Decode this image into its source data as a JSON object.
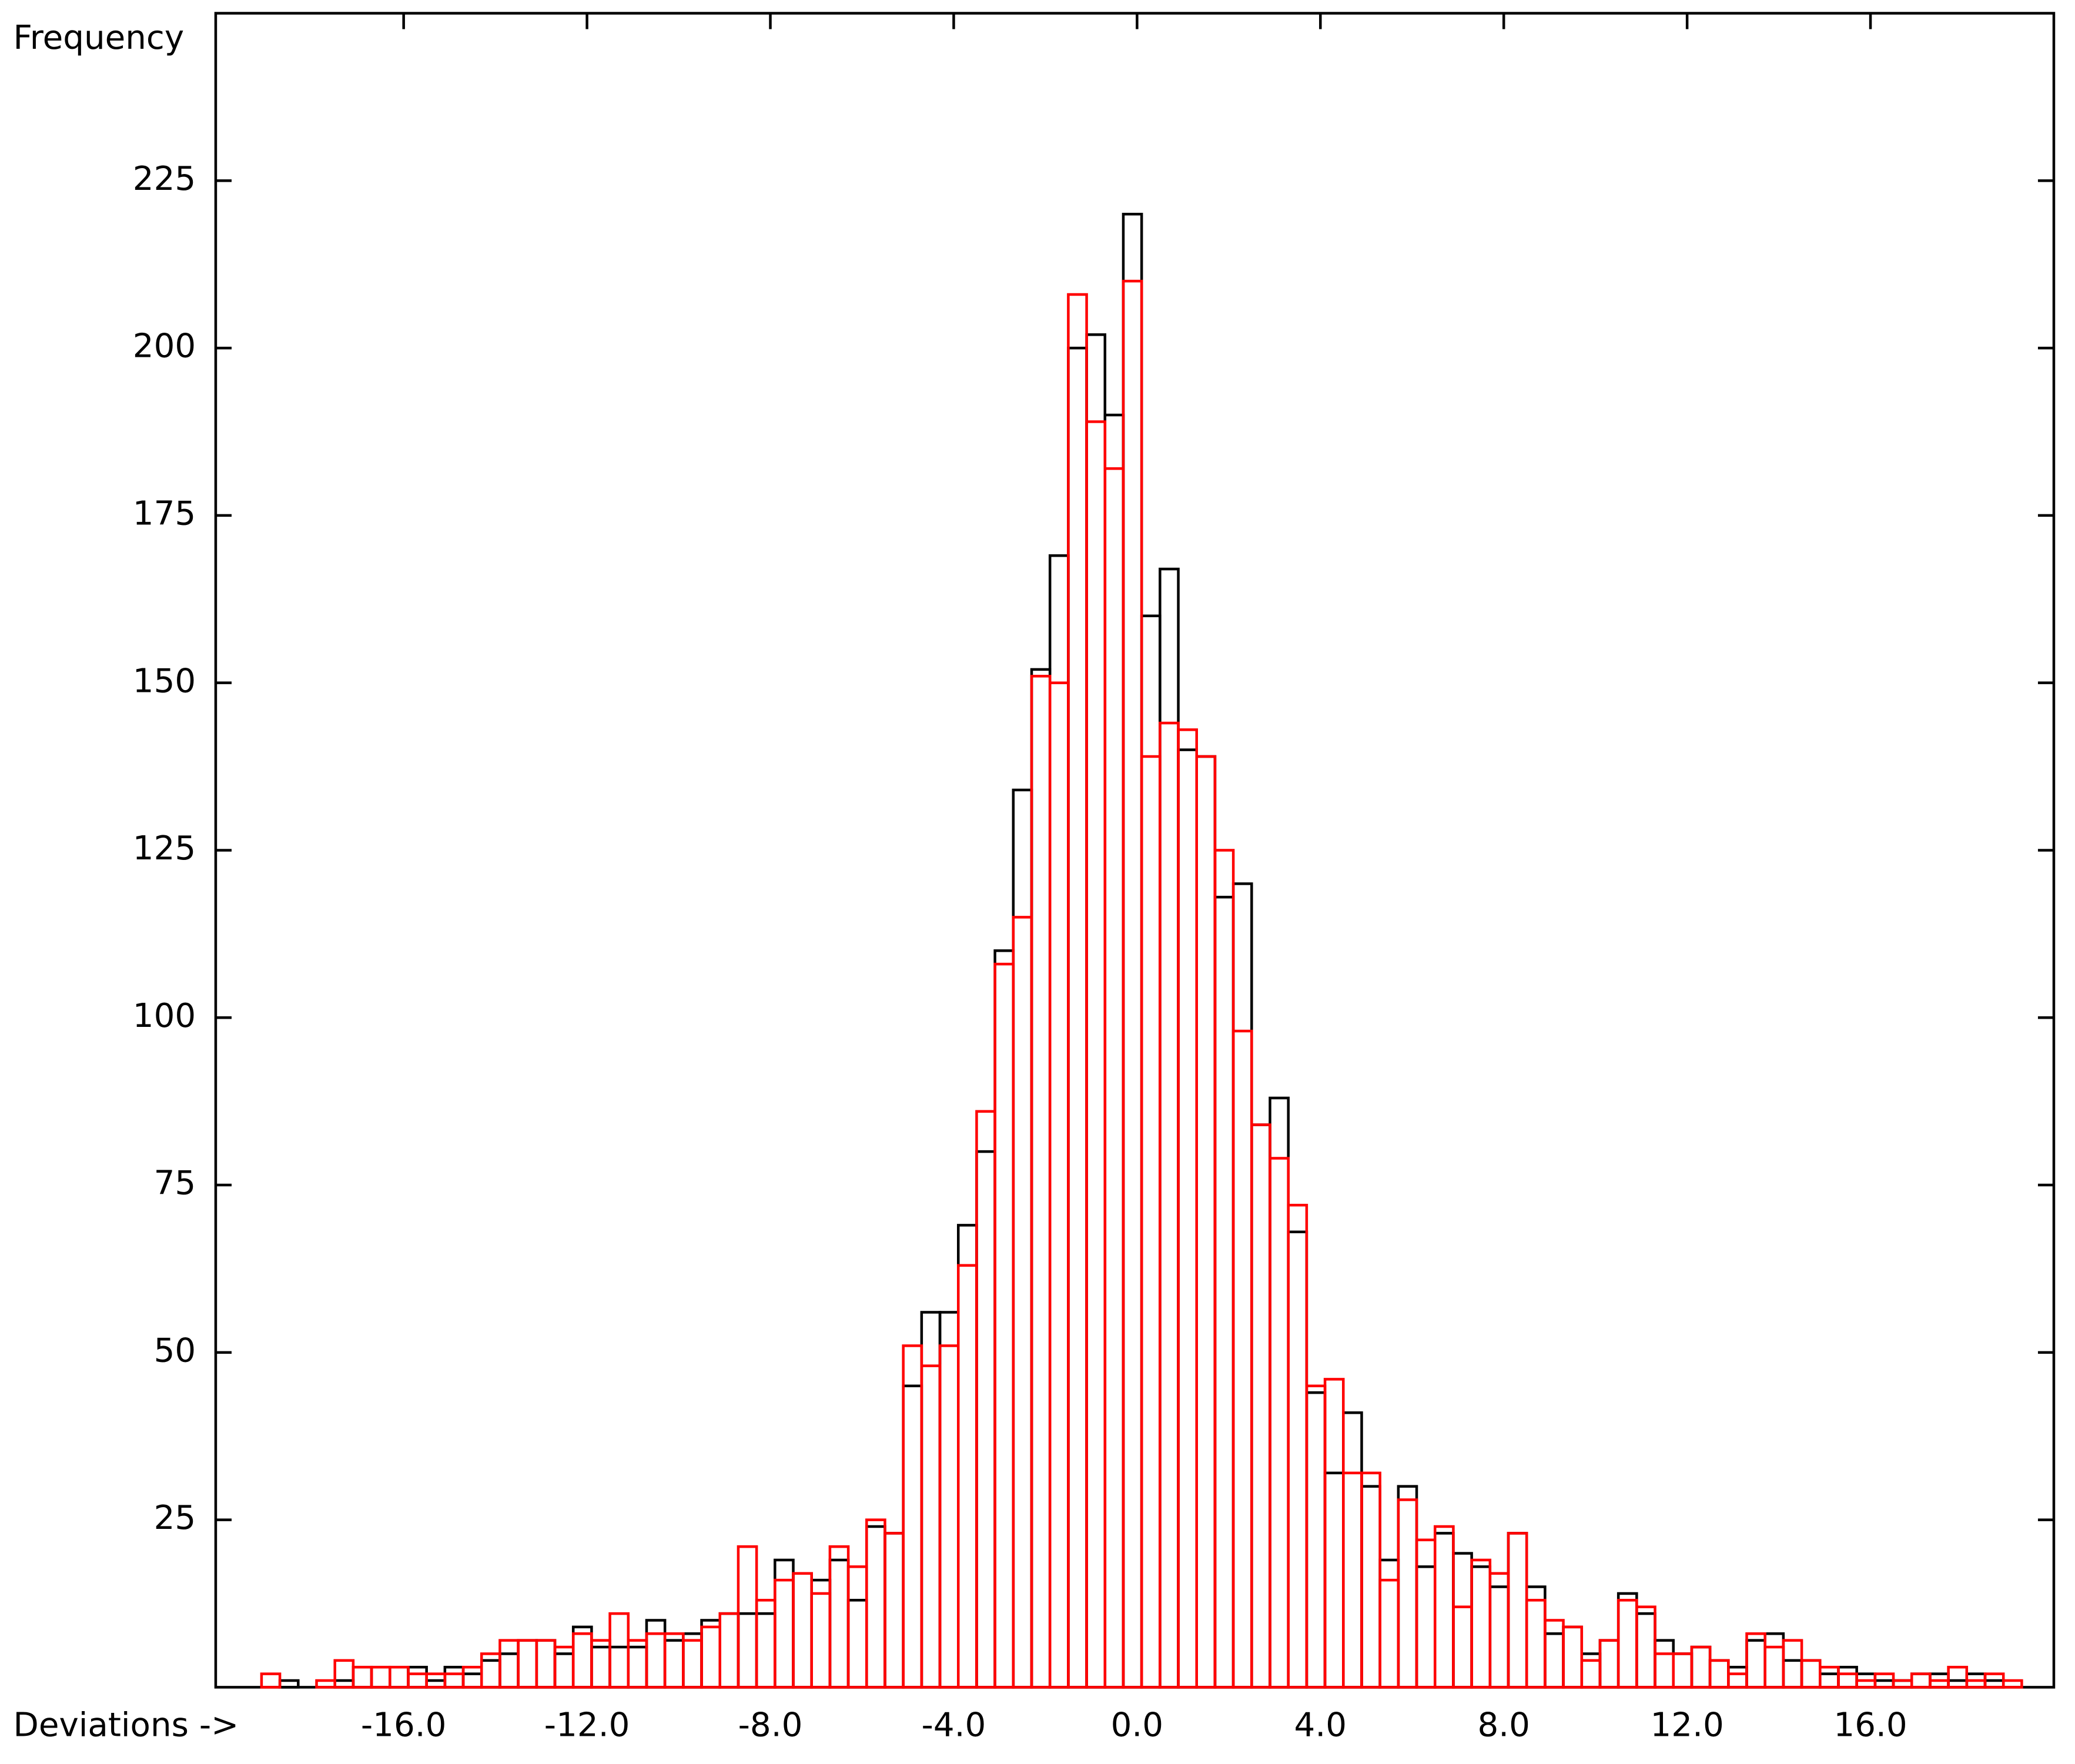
{
  "chart_data": {
    "type": "histogram",
    "y_label": "Frequency",
    "x_label": "Deviations ->",
    "bins": [
      -19.1,
      -18.7,
      -18.3,
      -17.9,
      -17.5,
      -17.1,
      -16.7,
      -16.3,
      -15.9,
      -15.5,
      -15.1,
      -14.7,
      -14.3,
      -13.9,
      -13.5,
      -13.1,
      -12.7,
      -12.3,
      -11.9,
      -11.5,
      -11.1,
      -10.7,
      -10.3,
      -9.9,
      -9.5,
      -9.1,
      -8.7,
      -8.3,
      -7.9,
      -7.5,
      -7.1,
      -6.7,
      -6.3,
      -5.9,
      -5.5,
      -5.1,
      -4.7,
      -4.3,
      -3.9,
      -3.5,
      -3.1,
      -2.7,
      -2.3,
      -1.9,
      -1.5,
      -1.1,
      -0.7,
      -0.3,
      0.1,
      0.5,
      0.9,
      1.3,
      1.7,
      2.1,
      2.5,
      2.9,
      3.3,
      3.7,
      4.1,
      4.5,
      4.9,
      5.3,
      5.7,
      6.1,
      6.5,
      6.9,
      7.3,
      7.7,
      8.1,
      8.5,
      8.9,
      9.3,
      9.7,
      10.1,
      10.5,
      10.9,
      11.3,
      11.7,
      12.1,
      12.5,
      12.9,
      13.3,
      13.7,
      14.1,
      14.5,
      14.9,
      15.3,
      15.7,
      16.1,
      16.5,
      16.9,
      17.3,
      17.7,
      18.1,
      18.5,
      18.9,
      19.3
    ],
    "series": [
      {
        "color": "#000000",
        "values": [
          0,
          1,
          0,
          0,
          1,
          3,
          3,
          3,
          3,
          1,
          3,
          2,
          4,
          5,
          7,
          7,
          5,
          9,
          6,
          6,
          6,
          10,
          7,
          8,
          10,
          11,
          11,
          11,
          19,
          17,
          16,
          19,
          13,
          24,
          23,
          45,
          56,
          56,
          69,
          80,
          110,
          134,
          152,
          169,
          200,
          202,
          190,
          220,
          160,
          167,
          140,
          139,
          118,
          120,
          84,
          88,
          68,
          44,
          32,
          41,
          30,
          19,
          30,
          18,
          23,
          20,
          18,
          15,
          23,
          15,
          8,
          9,
          5,
          7,
          14,
          11,
          7,
          5,
          6,
          4,
          3,
          7,
          8,
          4,
          4,
          2,
          3,
          2,
          1,
          1,
          2,
          2,
          1,
          2,
          1,
          0
        ]
      },
      {
        "color": "#ff0000",
        "values": [
          2,
          0,
          0,
          1,
          4,
          3,
          3,
          3,
          2,
          2,
          2,
          3,
          5,
          7,
          7,
          7,
          6,
          8,
          7,
          11,
          7,
          8,
          8,
          7,
          9,
          11,
          21,
          13,
          16,
          17,
          14,
          21,
          18,
          25,
          23,
          51,
          48,
          51,
          63,
          86,
          108,
          115,
          151,
          150,
          208,
          189,
          182,
          210,
          139,
          144,
          143,
          139,
          125,
          98,
          84,
          79,
          72,
          45,
          46,
          32,
          32,
          16,
          28,
          22,
          24,
          12,
          19,
          17,
          23,
          13,
          10,
          9,
          4,
          7,
          13,
          12,
          5,
          5,
          6,
          4,
          2,
          8,
          6,
          7,
          4,
          3,
          2,
          1,
          2,
          1,
          2,
          1,
          3,
          1,
          2,
          1
        ]
      }
    ],
    "xlim": [
      -20.1,
      20
    ],
    "ylim": [
      0,
      250
    ],
    "xticks": [
      {
        "value": -16,
        "label": "-16.0"
      },
      {
        "value": -12,
        "label": "-12.0"
      },
      {
        "value": -8,
        "label": "-8.0"
      },
      {
        "value": -4,
        "label": "-4.0"
      },
      {
        "value": 0,
        "label": "0.0"
      },
      {
        "value": 4,
        "label": "4.0"
      },
      {
        "value": 8,
        "label": "8.0"
      },
      {
        "value": 12,
        "label": "12.0"
      },
      {
        "value": 16,
        "label": "16.0"
      }
    ],
    "yticks": [
      25,
      50,
      75,
      100,
      125,
      150,
      175,
      200,
      225
    ],
    "grid": false
  }
}
